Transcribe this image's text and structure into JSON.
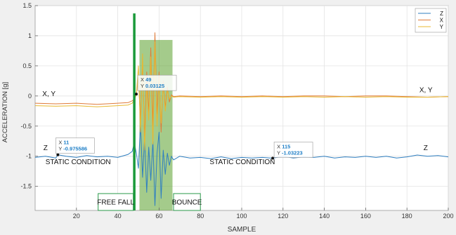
{
  "chart_data": {
    "type": "line",
    "xlabel": "SAMPLE",
    "ylabel": "ACCELERATION [g]",
    "xlim": [
      0,
      200
    ],
    "ylim": [
      -1.9,
      1.5
    ],
    "xticks": [
      20,
      40,
      60,
      80,
      100,
      120,
      140,
      160,
      180,
      200
    ],
    "yticks": [
      -1.5,
      -1,
      -0.5,
      0,
      0.5,
      1,
      1.5
    ],
    "grid": true,
    "legend_position": "top-right",
    "series": [
      {
        "name": "Z",
        "color": "#2f7fc1",
        "points": [
          [
            0,
            -1.02
          ],
          [
            5,
            -1.0
          ],
          [
            10,
            -1.03
          ],
          [
            11,
            -0.976
          ],
          [
            15,
            -1.0
          ],
          [
            20,
            -1.02
          ],
          [
            25,
            -0.99
          ],
          [
            30,
            -1.01
          ],
          [
            35,
            -1.0
          ],
          [
            40,
            -1.02
          ],
          [
            45,
            -0.97
          ],
          [
            47,
            -0.92
          ],
          [
            48,
            -0.78
          ],
          [
            49,
            -0.95
          ],
          [
            50,
            -1.2
          ],
          [
            51,
            -0.45
          ],
          [
            52,
            -1.35
          ],
          [
            53,
            -0.7
          ],
          [
            54,
            -1.6
          ],
          [
            55,
            -0.85
          ],
          [
            56,
            -1.4
          ],
          [
            57,
            -0.75
          ],
          [
            58,
            -1.82
          ],
          [
            59,
            -0.95
          ],
          [
            60,
            -0.6
          ],
          [
            61,
            -1.7
          ],
          [
            62,
            -0.9
          ],
          [
            63,
            -1.3
          ],
          [
            64,
            -0.95
          ],
          [
            65,
            -1.15
          ],
          [
            66,
            -1.0
          ],
          [
            67,
            -1.06
          ],
          [
            70,
            -1.0
          ],
          [
            75,
            -1.03
          ],
          [
            80,
            -1.02
          ],
          [
            85,
            -1.04
          ],
          [
            90,
            -1.01
          ],
          [
            95,
            -1.04
          ],
          [
            100,
            -1.02
          ],
          [
            105,
            -1.03
          ],
          [
            110,
            -1.02
          ],
          [
            115,
            -1.032
          ],
          [
            120,
            -1.0
          ],
          [
            125,
            -1.03
          ],
          [
            130,
            -1.01
          ],
          [
            135,
            -1.02
          ],
          [
            140,
            -1.0
          ],
          [
            145,
            -1.03
          ],
          [
            150,
            -1.01
          ],
          [
            155,
            -1.02
          ],
          [
            160,
            -1.0
          ],
          [
            165,
            -1.02
          ],
          [
            170,
            -1.0
          ],
          [
            175,
            -1.03
          ],
          [
            180,
            -1.01
          ],
          [
            185,
            -0.98
          ],
          [
            190,
            -1.0
          ],
          [
            195,
            -0.99
          ],
          [
            200,
            -1.01
          ]
        ]
      },
      {
        "name": "X",
        "color": "#e07b39",
        "points": [
          [
            0,
            -0.12
          ],
          [
            10,
            -0.13
          ],
          [
            20,
            -0.12
          ],
          [
            30,
            -0.14
          ],
          [
            40,
            -0.12
          ],
          [
            45,
            -0.11
          ],
          [
            47,
            -0.08
          ],
          [
            48,
            -0.05
          ],
          [
            49,
            0.031
          ],
          [
            50,
            0.3
          ],
          [
            51,
            -0.4
          ],
          [
            52,
            0.55
          ],
          [
            53,
            -0.7
          ],
          [
            54,
            0.4
          ],
          [
            55,
            -0.3
          ],
          [
            56,
            0.8
          ],
          [
            57,
            -0.5
          ],
          [
            58,
            1.05
          ],
          [
            59,
            -0.3
          ],
          [
            60,
            0.4
          ],
          [
            61,
            -0.6
          ],
          [
            62,
            0.25
          ],
          [
            63,
            -0.2
          ],
          [
            64,
            0.15
          ],
          [
            65,
            -0.1
          ],
          [
            66,
            0.02
          ],
          [
            67,
            -0.01
          ],
          [
            70,
            0.0
          ],
          [
            80,
            -0.01
          ],
          [
            90,
            0.0
          ],
          [
            100,
            -0.01
          ],
          [
            110,
            0.0
          ],
          [
            120,
            -0.01
          ],
          [
            130,
            0.0
          ],
          [
            140,
            0.0
          ],
          [
            150,
            -0.01
          ],
          [
            160,
            0.0
          ],
          [
            170,
            0.0
          ],
          [
            180,
            -0.01
          ],
          [
            190,
            -0.02
          ],
          [
            200,
            -0.01
          ]
        ]
      },
      {
        "name": "Y",
        "color": "#e8b830",
        "points": [
          [
            0,
            -0.16
          ],
          [
            10,
            -0.17
          ],
          [
            20,
            -0.16
          ],
          [
            30,
            -0.18
          ],
          [
            40,
            -0.16
          ],
          [
            45,
            -0.15
          ],
          [
            47,
            -0.12
          ],
          [
            48,
            -0.06
          ],
          [
            49,
            0.02
          ],
          [
            50,
            0.5
          ],
          [
            51,
            -0.6
          ],
          [
            52,
            0.7
          ],
          [
            53,
            -0.9
          ],
          [
            54,
            0.2
          ],
          [
            55,
            -0.4
          ],
          [
            56,
            0.65
          ],
          [
            57,
            -0.8
          ],
          [
            58,
            0.9
          ],
          [
            59,
            -0.5
          ],
          [
            60,
            0.3
          ],
          [
            61,
            -0.45
          ],
          [
            62,
            0.2
          ],
          [
            63,
            -0.25
          ],
          [
            64,
            0.1
          ],
          [
            65,
            -0.05
          ],
          [
            66,
            0.0
          ],
          [
            67,
            -0.02
          ],
          [
            70,
            -0.01
          ],
          [
            80,
            -0.02
          ],
          [
            90,
            -0.01
          ],
          [
            100,
            -0.02
          ],
          [
            110,
            -0.01
          ],
          [
            120,
            -0.02
          ],
          [
            130,
            -0.01
          ],
          [
            140,
            -0.02
          ],
          [
            150,
            -0.01
          ],
          [
            160,
            -0.02
          ],
          [
            170,
            -0.01
          ],
          [
            180,
            -0.02
          ],
          [
            190,
            -0.02
          ],
          [
            200,
            -0.01
          ]
        ]
      }
    ],
    "highlight_region": {
      "x_start": 50.5,
      "x_end": 66.5,
      "y_start": -1.9,
      "y_end": 0.93,
      "color": "#5aa02c"
    },
    "marker_line": {
      "x": 48,
      "y_start": -1.9,
      "y_end": 1.37,
      "color": "#1a9a3a"
    },
    "datatips": [
      {
        "x": 11,
        "y": -0.975586,
        "x_label": "X",
        "x_value": "11",
        "y_label": "Y",
        "y_value": "-0.975586"
      },
      {
        "x": 49,
        "y": 0.03125,
        "x_label": "X",
        "x_value": "49",
        "y_label": "Y",
        "y_value": "0.03125"
      },
      {
        "x": 115,
        "y": -1.03223,
        "x_label": "X",
        "x_value": "115",
        "y_label": "Y",
        "y_value": "-1.03223"
      }
    ],
    "annotations": [
      {
        "text": "X, Y",
        "x": 3.5,
        "y": 0.0
      },
      {
        "text": "X, Y",
        "x": 186,
        "y": 0.06
      },
      {
        "text": "Z",
        "x": 4,
        "y": -0.9
      },
      {
        "text": "Z",
        "x": 188,
        "y": -0.9
      },
      {
        "text": "STATIC CONDITION",
        "x": 5,
        "y": -1.13
      },
      {
        "text": "STATIC CONDITION",
        "x": 84.5,
        "y": -1.13
      }
    ],
    "boxed_labels": [
      {
        "text": "FREE FALL",
        "x_start": 30.5,
        "x_end": 47.5,
        "y_top": -1.62,
        "y_bottom": -1.9
      },
      {
        "text": "BOUNCE",
        "x_start": 67,
        "x_end": 80,
        "y_top": -1.62,
        "y_bottom": -1.9
      }
    ]
  }
}
